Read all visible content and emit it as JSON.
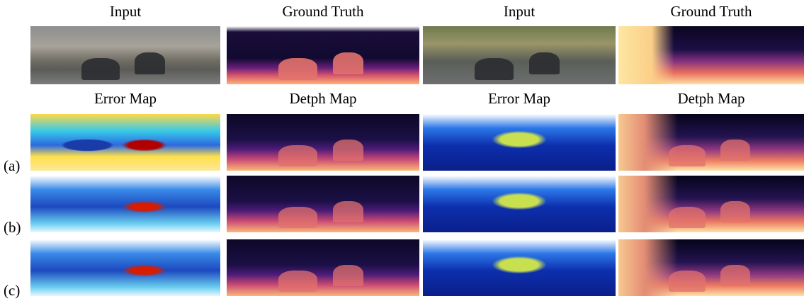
{
  "top_headers": [
    "Input",
    "Ground Truth",
    "Input",
    "Ground Truth"
  ],
  "second_headers": [
    "Error Map",
    "Detph Map",
    "Error Map",
    "Detph Map"
  ],
  "row_labels": [
    "(a)",
    "(b)",
    "(c)"
  ]
}
